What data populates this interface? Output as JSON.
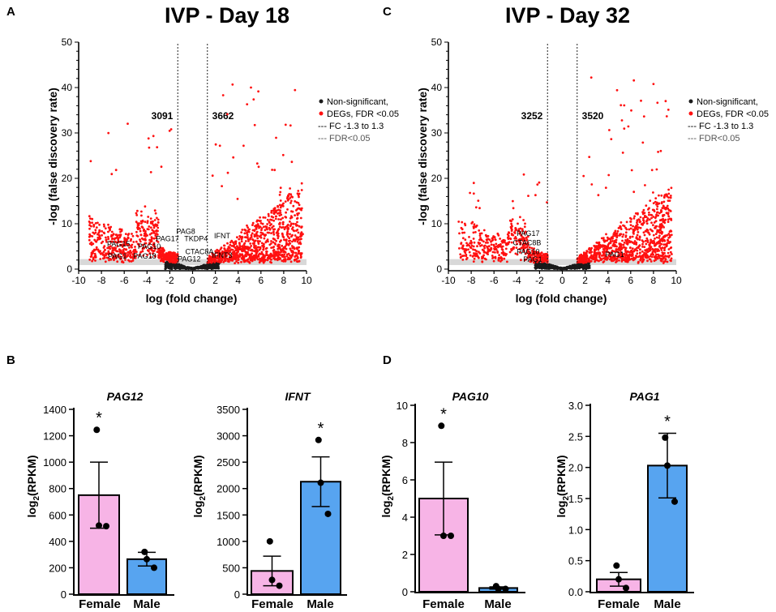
{
  "figure": {
    "panel_letters": [
      "A",
      "C",
      "B",
      "D"
    ]
  },
  "chart_data": [
    {
      "panel": "A",
      "type": "scatter",
      "title": "IVP - Day 18",
      "xlabel": "log (fold change)",
      "ylabel": "-log (false discovery rate)",
      "xlim": [
        -10,
        10
      ],
      "ylim": [
        0,
        50
      ],
      "xticks": [
        "-10",
        "-8",
        "-6",
        "-4",
        "-2",
        "0",
        "2",
        "4",
        "6",
        "8",
        "10"
      ],
      "yticks": [
        "0",
        "10",
        "20",
        "30",
        "40",
        "50"
      ],
      "fc_threshold": 1.3,
      "fdr_threshold_neglog": 1.3,
      "counts": {
        "down": "3091",
        "up": "3662"
      },
      "legend": [
        "Non-significant,",
        "DEGs, FDR <0.05",
        "--- FC -1.3 to 1.3",
        "--- FDR<0.05"
      ],
      "annotations": [
        {
          "text": "PAG8",
          "x": -0.6,
          "y": 7.8
        },
        {
          "text": "PAG17",
          "x": -2.2,
          "y": 6.2
        },
        {
          "text": "TKDP4",
          "x": 0.3,
          "y": 6.2
        },
        {
          "text": "PAG10",
          "x": -3.8,
          "y": 4.5
        },
        {
          "text": "PAG15",
          "x": -6.5,
          "y": 5.0
        },
        {
          "text": "CTAC8A",
          "x": 0.6,
          "y": 3.3
        },
        {
          "text": "PAG1",
          "x": -6.6,
          "y": 2.3
        },
        {
          "text": "PAG18",
          "x": -4.2,
          "y": 2.3
        },
        {
          "text": "PAG12",
          "x": -0.3,
          "y": 1.7
        },
        {
          "text": "IFNT",
          "x": 2.6,
          "y": 6.8
        },
        {
          "text": "IFNT3",
          "x": 2.6,
          "y": 2.5
        }
      ],
      "scatter_profile": {
        "down_peak": 34.5,
        "up_peak": 41.8
      }
    },
    {
      "panel": "C",
      "type": "scatter",
      "title": "IVP - Day 32",
      "xlabel": "log (fold change)",
      "ylabel": "-log (false discovery rate)",
      "xlim": [
        -10,
        10
      ],
      "ylim": [
        0,
        50
      ],
      "xticks": [
        "-10",
        "-8",
        "-6",
        "-4",
        "-2",
        "0",
        "2",
        "4",
        "6",
        "8",
        "10"
      ],
      "yticks": [
        "0",
        "10",
        "20",
        "30",
        "40",
        "50"
      ],
      "fc_threshold": 1.3,
      "fdr_threshold_neglog": 1.3,
      "counts": {
        "down": "3252",
        "up": "3520"
      },
      "legend": [
        "Non-significant,",
        "DEGs, FDR <0.05",
        "--- FC -1.3 to 1.3",
        "--- FDR<0.05"
      ],
      "annotations": [
        {
          "text": "PAG17",
          "x": -3.0,
          "y": 7.3
        },
        {
          "text": "CTAC8B",
          "x": -3.1,
          "y": 5.3
        },
        {
          "text": "PAG10",
          "x": -3.0,
          "y": 3.3
        },
        {
          "text": "PAG1",
          "x": -2.6,
          "y": 1.6
        },
        {
          "text": "PAG1",
          "x": 4.6,
          "y": 2.7
        }
      ],
      "scatter_profile": {
        "down_peak": 22.0,
        "up_peak": 42.3
      }
    },
    {
      "panel": "B",
      "type": "bar",
      "title": "PAG12",
      "ylabel_base": "log",
      "ylabel_sub": "2",
      "ylabel_rest": "(RPKM)",
      "categories": [
        "Female",
        "Male"
      ],
      "values": [
        750,
        265
      ],
      "errors": [
        250,
        52
      ],
      "points": [
        [
          1245,
          520,
          515
        ],
        [
          320,
          265,
          200
        ]
      ],
      "ylim": [
        0,
        1400
      ],
      "yticks": [
        "0",
        "200",
        "400",
        "600",
        "800",
        "1000",
        "1200",
        "1400"
      ],
      "significance": [
        "*",
        ""
      ]
    },
    {
      "panel": "B",
      "type": "bar",
      "title": "IFNT",
      "ylabel_base": "log",
      "ylabel_sub": "2",
      "ylabel_rest": "(RPKM)",
      "categories": [
        "Female",
        "Male"
      ],
      "values": [
        440,
        2130
      ],
      "errors": [
        280,
        470
      ],
      "points": [
        [
          1000,
          270,
          160
        ],
        [
          2920,
          2110,
          1520
        ]
      ],
      "ylim": [
        0,
        3500
      ],
      "yticks": [
        "0",
        "500",
        "1000",
        "1500",
        "2000",
        "2500",
        "3000",
        "3500"
      ],
      "significance": [
        "",
        "*"
      ]
    },
    {
      "panel": "D",
      "type": "bar",
      "title": "PAG10",
      "ylabel_base": "log",
      "ylabel_sub": "2",
      "ylabel_rest": "(RPKM)",
      "categories": [
        "Female",
        "Male"
      ],
      "values": [
        5.0,
        0.2
      ],
      "errors": [
        1.95,
        0.06
      ],
      "points": [
        [
          8.9,
          3.0,
          3.0
        ],
        [
          0.3,
          0.15,
          0.15
        ]
      ],
      "ylim": [
        0,
        10
      ],
      "yticks": [
        "0",
        "2",
        "4",
        "6",
        "8",
        "10"
      ],
      "significance": [
        "*",
        ""
      ]
    },
    {
      "panel": "D",
      "type": "bar",
      "title": "PAG1",
      "ylabel_base": "log",
      "ylabel_sub": "2",
      "ylabel_rest": "(RPKM)",
      "categories": [
        "Female",
        "Male"
      ],
      "values": [
        0.2,
        2.03
      ],
      "errors": [
        0.11,
        0.52
      ],
      "points": [
        [
          0.42,
          0.2,
          0.06
        ],
        [
          2.48,
          2.03,
          1.45
        ]
      ],
      "ylim": [
        0,
        3.0
      ],
      "yticks": [
        "0.0",
        "0.5",
        "1.0",
        "1.5",
        "2.0",
        "2.5",
        "3.0"
      ],
      "significance": [
        "",
        "*"
      ]
    }
  ],
  "colors": {
    "sig": "#ff1010",
    "nonsig": "#1a1a1a",
    "female_bar": "#f7b4e6",
    "male_bar": "#57a4f0",
    "threshold_band": "#d8d8d8"
  }
}
